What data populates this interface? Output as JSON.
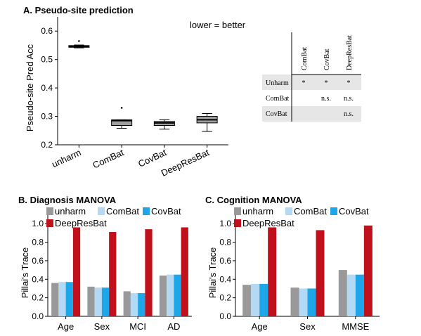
{
  "panelA": {
    "title": "A. Pseudo-site prediction",
    "note": "lower = better",
    "table": {
      "columns": [
        "ComBat",
        "CovBat",
        "DeepResBat"
      ],
      "rows": [
        {
          "label": "Unharm",
          "cells": [
            "*",
            "*",
            "*"
          ]
        },
        {
          "label": "ComBat",
          "cells": [
            "",
            "n.s.",
            "n.s."
          ]
        },
        {
          "label": "CovBat",
          "cells": [
            "",
            "",
            "n.s."
          ]
        }
      ]
    }
  },
  "panelB": {
    "title": "B. Diagnosis MANOVA"
  },
  "panelC": {
    "title": "C. Cognition MANOVA"
  },
  "chart_data": [
    {
      "type": "box",
      "ylabel": "Pseudo-site Pred Acc",
      "ylim": [
        0.2,
        0.65
      ],
      "yticks": [
        "0.2",
        "0.3",
        "0.4",
        "0.5",
        "0.6"
      ],
      "categories": [
        "unharm",
        "ComBat",
        "CovBat",
        "DeepResBat"
      ],
      "boxes": [
        {
          "min": 0.541,
          "q1": 0.543,
          "median": 0.546,
          "q3": 0.549,
          "max": 0.551,
          "outliers": [
            0.565
          ]
        },
        {
          "min": 0.258,
          "q1": 0.268,
          "median": 0.285,
          "q3": 0.288,
          "max": 0.288,
          "outliers": [
            0.33
          ]
        },
        {
          "min": 0.255,
          "q1": 0.268,
          "median": 0.277,
          "q3": 0.282,
          "max": 0.288,
          "outliers": []
        },
        {
          "min": 0.247,
          "q1": 0.277,
          "median": 0.288,
          "q3": 0.3,
          "max": 0.31,
          "outliers": []
        }
      ],
      "colors": {
        "box": "#a0a0a0"
      }
    },
    {
      "type": "bar",
      "ylabel": "Pillai's Trace",
      "ylim": [
        0,
        1.1
      ],
      "yticks": [
        "0.0",
        "0.2",
        "0.4",
        "0.6",
        "0.8",
        "1.0"
      ],
      "categories": [
        "Age",
        "Sex",
        "MCI",
        "AD"
      ],
      "legend": [
        "unharm",
        "ComBat",
        "CovBat",
        "DeepResBat"
      ],
      "series": [
        {
          "name": "unharm",
          "values": [
            0.36,
            0.32,
            0.27,
            0.44
          ]
        },
        {
          "name": "ComBat",
          "values": [
            0.37,
            0.31,
            0.25,
            0.45
          ]
        },
        {
          "name": "CovBat",
          "values": [
            0.37,
            0.31,
            0.25,
            0.45
          ]
        },
        {
          "name": "DeepResBat",
          "values": [
            0.96,
            0.91,
            0.94,
            0.96
          ]
        }
      ],
      "colors": [
        "#999999",
        "#b3d9f5",
        "#1ea7e8",
        "#c0101c"
      ]
    },
    {
      "type": "bar",
      "ylabel": "Pillai's Trace",
      "ylim": [
        0,
        1.1
      ],
      "yticks": [
        "0.0",
        "0.2",
        "0.4",
        "0.6",
        "0.8",
        "1.0"
      ],
      "categories": [
        "Age",
        "Sex",
        "MMSE"
      ],
      "legend": [
        "unharm",
        "ComBat",
        "CovBat",
        "DeepResBat"
      ],
      "series": [
        {
          "name": "unharm",
          "values": [
            0.34,
            0.31,
            0.5
          ]
        },
        {
          "name": "ComBat",
          "values": [
            0.35,
            0.3,
            0.45
          ]
        },
        {
          "name": "CovBat",
          "values": [
            0.35,
            0.3,
            0.45
          ]
        },
        {
          "name": "DeepResBat",
          "values": [
            0.96,
            0.93,
            0.98
          ]
        }
      ],
      "colors": [
        "#999999",
        "#b3d9f5",
        "#1ea7e8",
        "#c0101c"
      ]
    }
  ]
}
